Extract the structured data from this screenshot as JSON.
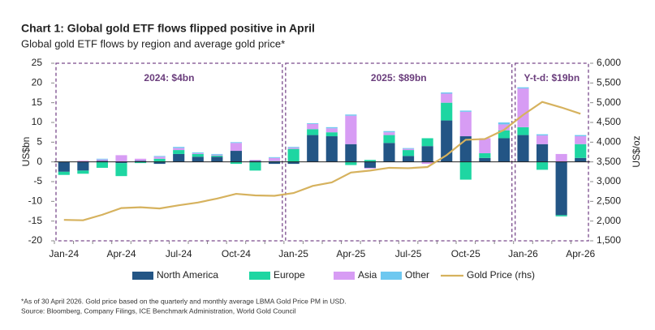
{
  "chart_data": {
    "type": "bar",
    "title": "Chart 1: Global gold ETF flows flipped positive in April",
    "subtitle": "Global gold ETF flows by region and average gold price*",
    "ylabel": "US$bn",
    "y2label": "US$/oz",
    "categories": [
      "Jan-24",
      null,
      null,
      "Apr-24",
      null,
      null,
      "Jul-24",
      null,
      null,
      "Oct-24",
      null,
      null,
      "Jan-25",
      null,
      null,
      "Apr-25",
      null,
      null,
      "Jul-25",
      null,
      null,
      "Oct-25",
      null,
      null,
      "Jan-26",
      null,
      null,
      "Apr-26"
    ],
    "series": [
      {
        "name": "North America",
        "color": "#235585",
        "values": [
          -2.5,
          -2.2,
          0.3,
          -0.3,
          0.3,
          -0.5,
          2.0,
          1.3,
          1.3,
          2.8,
          0.3,
          -0.5,
          -0.5,
          6.8,
          6.5,
          4.5,
          -1.5,
          4.8,
          1.5,
          4.0,
          10.5,
          6.5,
          1.0,
          6.0,
          6.8,
          4.5,
          -13.5,
          1.0
        ]
      },
      {
        "name": "Europe",
        "color": "#1ed6a2",
        "values": [
          -0.8,
          -0.8,
          -1.5,
          -3.3,
          -0.3,
          0.8,
          1.0,
          0.7,
          0.3,
          -0.5,
          -2.2,
          0.2,
          3.3,
          1.5,
          1.0,
          -0.8,
          0.5,
          2.0,
          1.5,
          2.0,
          4.5,
          -4.5,
          1.2,
          2.0,
          2.0,
          -2.0,
          -0.3,
          3.5
        ]
      },
      {
        "name": "Asia",
        "color": "#d79cf4",
        "values": [
          0,
          0.3,
          0.3,
          1.7,
          0.5,
          0.5,
          0.5,
          0.2,
          0.2,
          2.0,
          0.2,
          0.8,
          0.3,
          1.3,
          1.0,
          7.2,
          -0.2,
          0.7,
          0.3,
          -0.5,
          2.3,
          6.2,
          3.8,
          1.5,
          9.8,
          2.2,
          2.0,
          2.0
        ]
      },
      {
        "name": "Other",
        "color": "#6ec8f0",
        "values": [
          0,
          0,
          0.2,
          0,
          0,
          0.2,
          0.3,
          0.2,
          0.2,
          0.2,
          0,
          0.2,
          0.2,
          0.2,
          0.3,
          0.3,
          0,
          0.3,
          0.2,
          0,
          0.3,
          0.3,
          0,
          0.5,
          0.3,
          0.3,
          0,
          0.3
        ]
      },
      {
        "name": "Gold Price (rhs)",
        "color": "#d6b25e",
        "type": "line",
        "axis": "y2",
        "values": [
          2030,
          2020,
          2160,
          2330,
          2350,
          2320,
          2400,
          2470,
          2570,
          2690,
          2650,
          2640,
          2710,
          2890,
          2980,
          3230,
          3280,
          3350,
          3340,
          3370,
          3670,
          4060,
          4080,
          4310,
          4690,
          5020,
          4880,
          4720
        ]
      }
    ],
    "ylim": [
      -20,
      25
    ],
    "yticks": [
      -20,
      -15,
      -10,
      -5,
      0,
      5,
      10,
      15,
      20,
      25
    ],
    "y2lim": [
      1500,
      6000
    ],
    "y2ticks": [
      {
        "value": 1500,
        "label": "1,500"
      },
      {
        "value": 2000,
        "label": "2,000"
      },
      {
        "value": 2500,
        "label": "2,500"
      },
      {
        "value": 3000,
        "label": "3,000"
      },
      {
        "value": 3500,
        "label": "3,500"
      },
      {
        "value": 4000,
        "label": "4,000"
      },
      {
        "value": 4500,
        "label": "4,500"
      },
      {
        "value": 5000,
        "label": "5,000"
      },
      {
        "value": 5500,
        "label": "5,500"
      },
      {
        "value": 6000,
        "label": "6,000"
      }
    ],
    "annotations": [
      "2024: $4bn",
      "2025: $89bn",
      "Y-t-d: $19bn"
    ],
    "legend": "bottom",
    "footnote": "*As of 30 April 2026. Gold price based on the quarterly and monthly average LBMA Gold Price PM in USD.",
    "source": "Source: Bloomberg, Company Filings, ICE Benchmark Administration, World Gold Council"
  }
}
